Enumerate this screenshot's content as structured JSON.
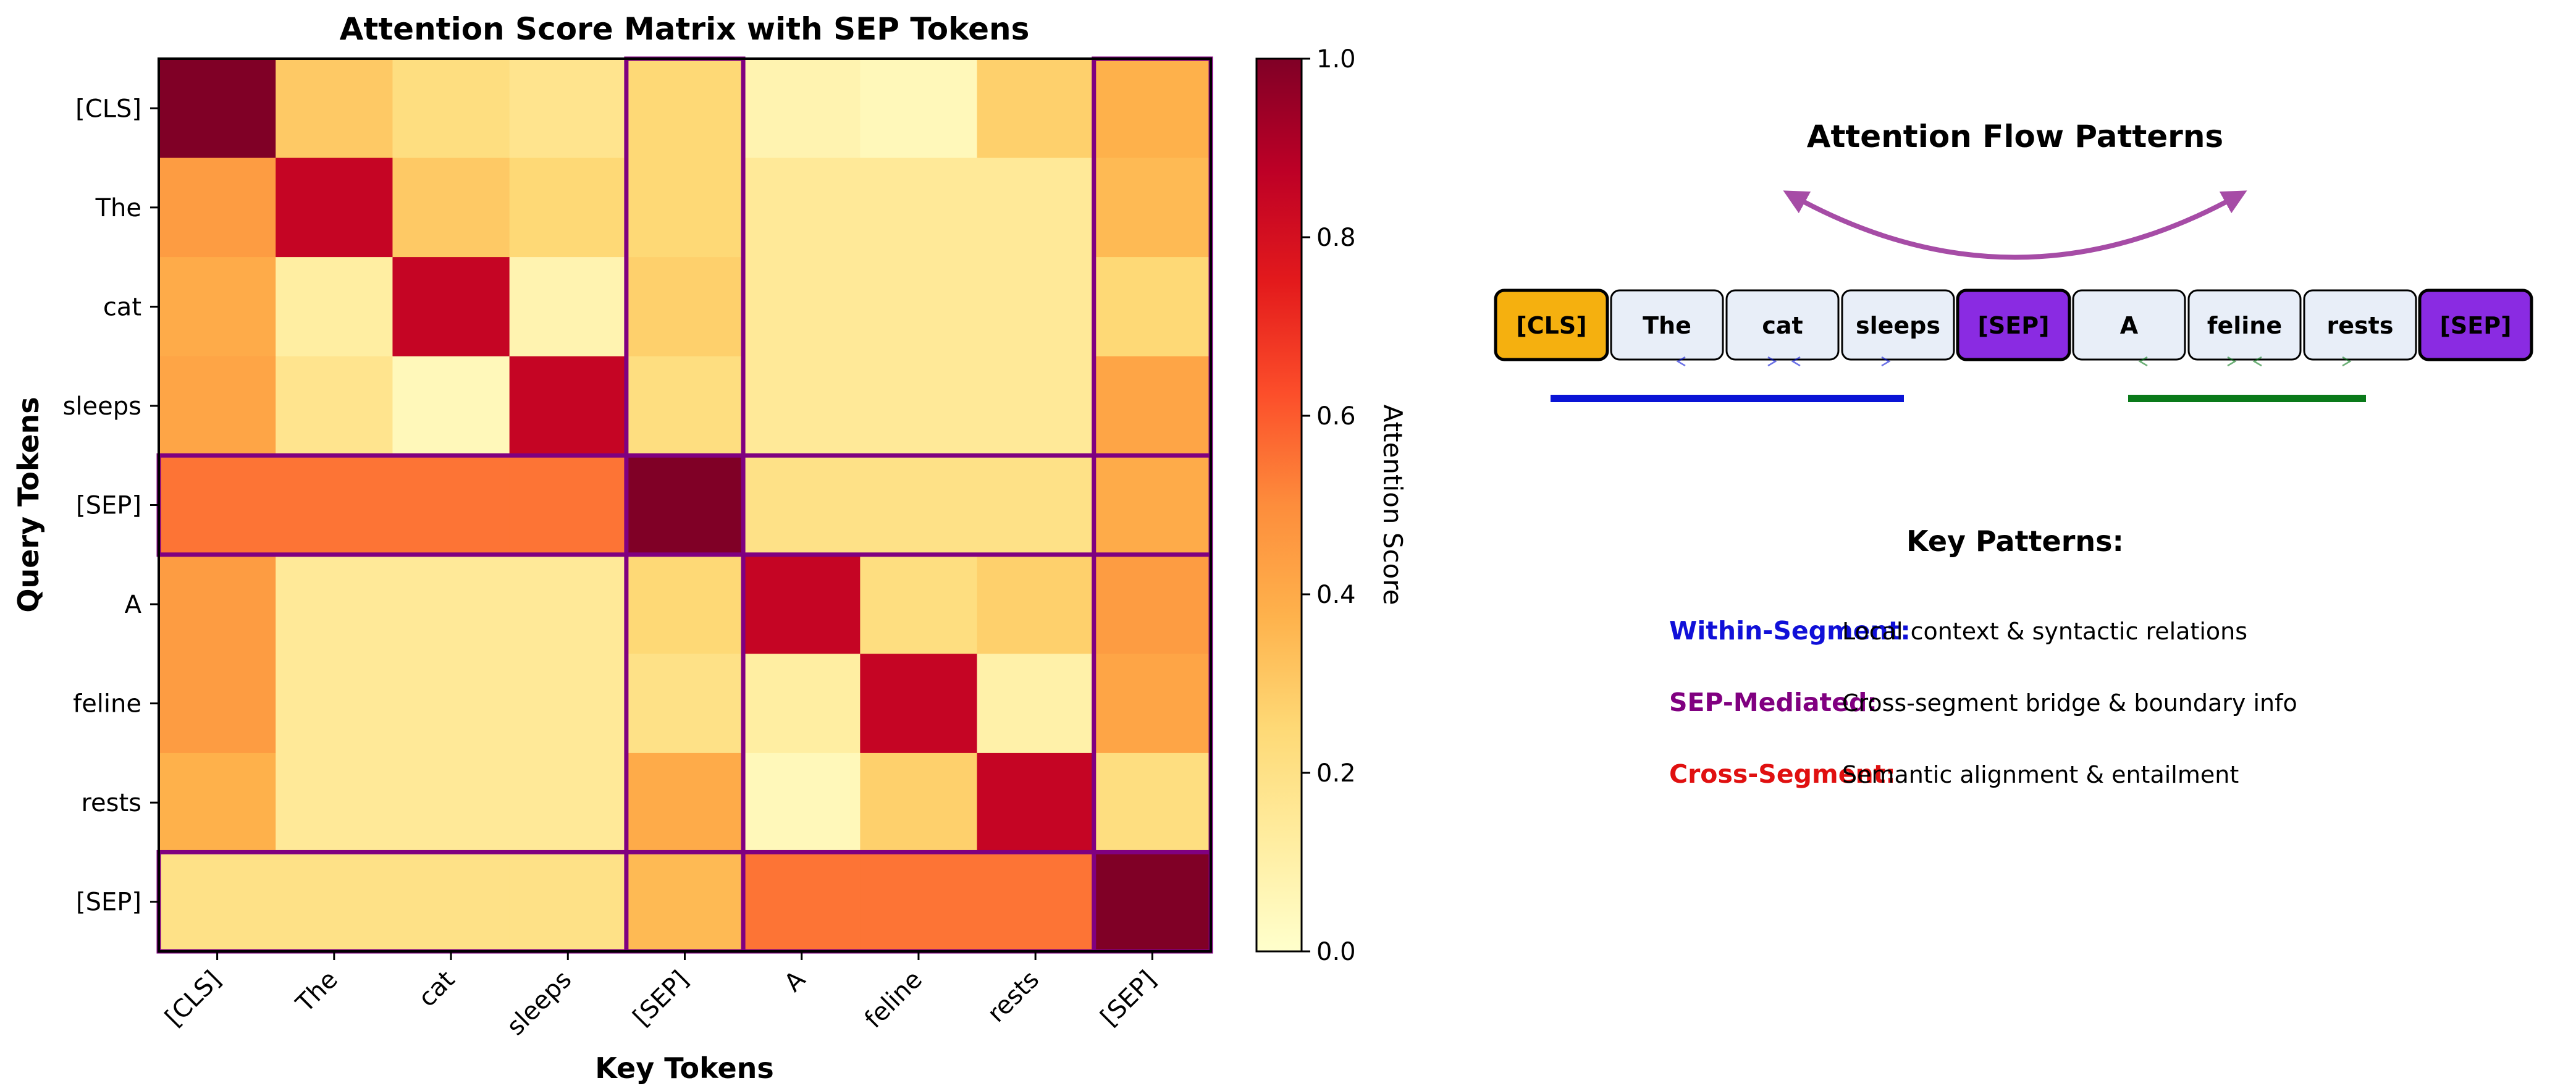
{
  "chart_data": [
    {
      "type": "heatmap",
      "title": "Attention Score Matrix with SEP Tokens",
      "xlabel": "Key Tokens",
      "ylabel": "Query Tokens",
      "x_categories": [
        "[CLS]",
        "The",
        "cat",
        "sleeps",
        "[SEP]",
        "A",
        "feline",
        "rests",
        "[SEP]"
      ],
      "y_categories": [
        "[CLS]",
        "The",
        "cat",
        "sleeps",
        "[SEP]",
        "A",
        "feline",
        "rests",
        "[SEP]"
      ],
      "values": [
        [
          1.0,
          0.3,
          0.22,
          0.18,
          0.25,
          0.08,
          0.05,
          0.28,
          0.38
        ],
        [
          0.45,
          0.85,
          0.3,
          0.25,
          0.25,
          0.15,
          0.15,
          0.15,
          0.35
        ],
        [
          0.4,
          0.12,
          0.85,
          0.08,
          0.28,
          0.15,
          0.15,
          0.15,
          0.25
        ],
        [
          0.42,
          0.18,
          0.05,
          0.85,
          0.22,
          0.15,
          0.15,
          0.15,
          0.42
        ],
        [
          0.55,
          0.55,
          0.55,
          0.55,
          1.0,
          0.2,
          0.2,
          0.2,
          0.4
        ],
        [
          0.45,
          0.15,
          0.15,
          0.15,
          0.25,
          0.85,
          0.22,
          0.28,
          0.45
        ],
        [
          0.45,
          0.15,
          0.15,
          0.15,
          0.2,
          0.12,
          0.85,
          0.1,
          0.42
        ],
        [
          0.38,
          0.15,
          0.15,
          0.15,
          0.4,
          0.05,
          0.28,
          0.85,
          0.22
        ],
        [
          0.2,
          0.2,
          0.2,
          0.2,
          0.35,
          0.55,
          0.55,
          0.55,
          1.0
        ]
      ],
      "colorscale": "YlOrRd",
      "colorbar": {
        "label": "Attention Score",
        "range": [
          0.0,
          1.0
        ],
        "ticks": [
          "0.0",
          "0.2",
          "0.4",
          "0.6",
          "0.8",
          "1.0"
        ]
      },
      "segment_borders_color": "#800080",
      "grid": false
    }
  ],
  "flow": {
    "title": "Attention Flow Patterns",
    "tokens": [
      {
        "label": "[CLS]",
        "kind": "cls"
      },
      {
        "label": "The",
        "kind": "word"
      },
      {
        "label": "cat",
        "kind": "word"
      },
      {
        "label": "sleeps",
        "kind": "word"
      },
      {
        "label": "[SEP]",
        "kind": "sep"
      },
      {
        "label": "A",
        "kind": "word"
      },
      {
        "label": "feline",
        "kind": "word"
      },
      {
        "label": "rests",
        "kind": "word"
      },
      {
        "label": "[SEP]",
        "kind": "sep"
      }
    ],
    "colors": {
      "cls": "#f5b00f",
      "sep": "#8a2be2",
      "word": "#e8eef8",
      "arc": "#a64ca6",
      "segment_a": "#0a14d6",
      "segment_b": "#0a7a1a"
    }
  },
  "key_patterns": {
    "title": "Key Patterns:",
    "items": [
      {
        "name": "Within-Segment:",
        "desc": "Local context & syntactic relations",
        "color": "#1010d8"
      },
      {
        "name": "SEP-Mediated:",
        "desc": "Cross-segment bridge & boundary info",
        "color": "#800080"
      },
      {
        "name": "Cross-Segment:",
        "desc": "Semantic alignment & entailment",
        "color": "#e01010"
      }
    ]
  }
}
